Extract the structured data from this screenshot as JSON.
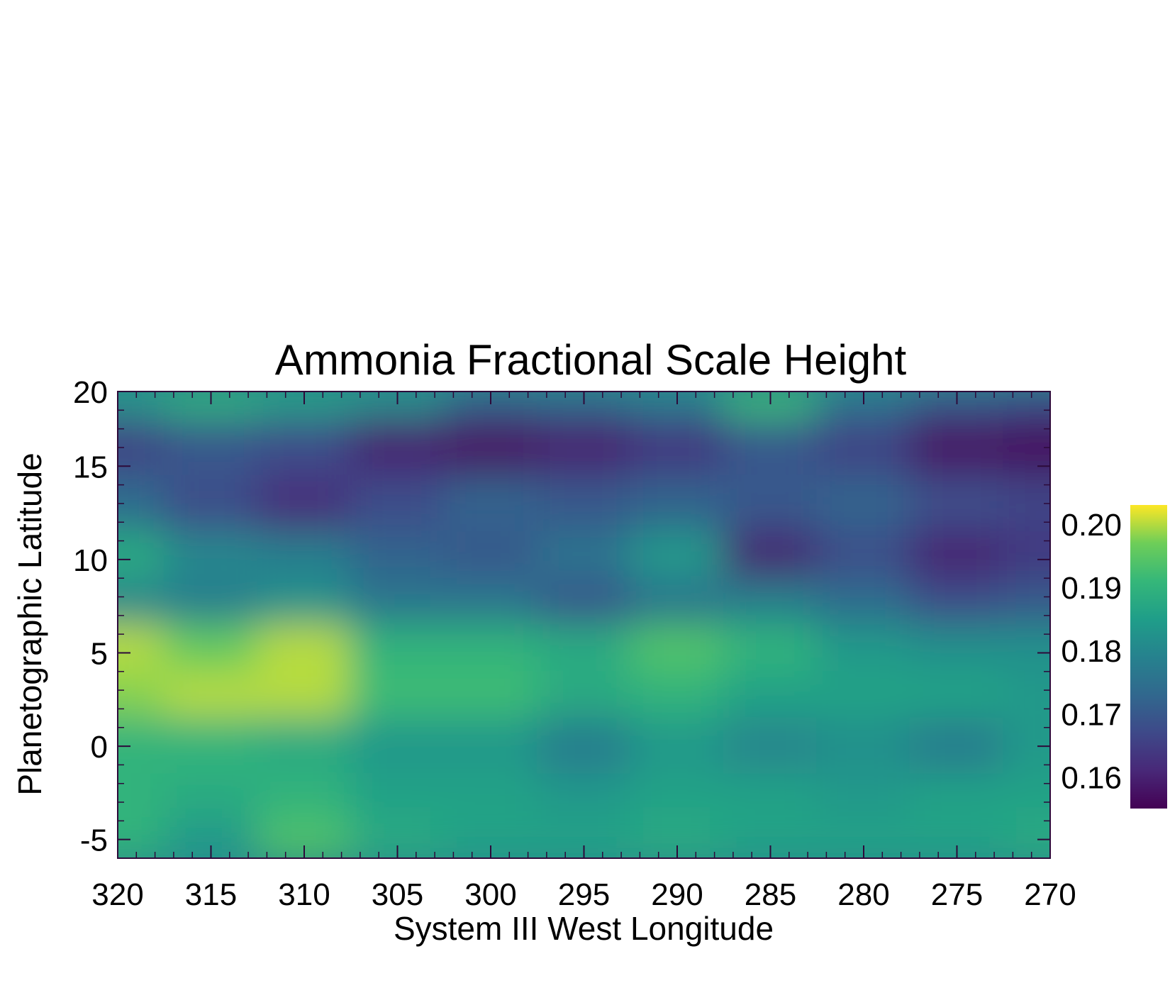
{
  "chart_data": {
    "type": "heatmap",
    "title": "Ammonia Fractional Scale Height",
    "xlabel": "System III West Longitude",
    "ylabel": "Planetographic Latitude",
    "xlim": [
      320,
      270
    ],
    "ylim": [
      -6,
      19
    ],
    "x_ticks": [
      320,
      315,
      310,
      305,
      300,
      295,
      290,
      285,
      280,
      275,
      270
    ],
    "x_tick_labels": [
      "320",
      "315",
      "310",
      "305",
      "300",
      "295",
      "290",
      "285",
      "280",
      "275",
      "270"
    ],
    "y_ticks": [
      20,
      15,
      10,
      5,
      0,
      -5
    ],
    "y_tick_labels": [
      "20",
      "15",
      "10",
      "5",
      "0",
      "-5"
    ],
    "colormap": "viridis",
    "colorbar": {
      "range": [
        0.155,
        0.203
      ],
      "ticks": [
        0.2,
        0.19,
        0.18,
        0.17,
        0.16
      ],
      "tick_labels": [
        "0.20",
        "0.19",
        "0.18",
        "0.17",
        "0.16"
      ]
    },
    "x": [
      320,
      315,
      310,
      305,
      300,
      295,
      290,
      285,
      280,
      275,
      270
    ],
    "y": [
      19,
      16,
      13,
      10,
      8,
      5,
      3,
      0,
      -3,
      -5
    ],
    "z": [
      [
        0.184,
        0.19,
        0.186,
        0.182,
        0.172,
        0.174,
        0.178,
        0.192,
        0.176,
        0.17,
        0.168
      ],
      [
        0.166,
        0.17,
        0.168,
        0.16,
        0.158,
        0.16,
        0.164,
        0.17,
        0.166,
        0.158,
        0.157
      ],
      [
        0.174,
        0.168,
        0.162,
        0.168,
        0.172,
        0.17,
        0.172,
        0.17,
        0.172,
        0.168,
        0.166
      ],
      [
        0.188,
        0.18,
        0.178,
        0.172,
        0.17,
        0.176,
        0.184,
        0.16,
        0.168,
        0.16,
        0.164
      ],
      [
        0.18,
        0.178,
        0.182,
        0.176,
        0.176,
        0.17,
        0.176,
        0.178,
        0.174,
        0.168,
        0.17
      ],
      [
        0.2,
        0.196,
        0.2,
        0.19,
        0.19,
        0.188,
        0.194,
        0.19,
        0.184,
        0.182,
        0.182
      ],
      [
        0.198,
        0.2,
        0.2,
        0.192,
        0.192,
        0.188,
        0.19,
        0.186,
        0.186,
        0.186,
        0.184
      ],
      [
        0.19,
        0.19,
        0.188,
        0.184,
        0.184,
        0.178,
        0.184,
        0.18,
        0.182,
        0.178,
        0.184
      ],
      [
        0.19,
        0.188,
        0.19,
        0.186,
        0.186,
        0.184,
        0.186,
        0.186,
        0.184,
        0.186,
        0.186
      ],
      [
        0.19,
        0.184,
        0.194,
        0.188,
        0.186,
        0.186,
        0.188,
        0.186,
        0.186,
        0.186,
        0.188
      ]
    ]
  }
}
